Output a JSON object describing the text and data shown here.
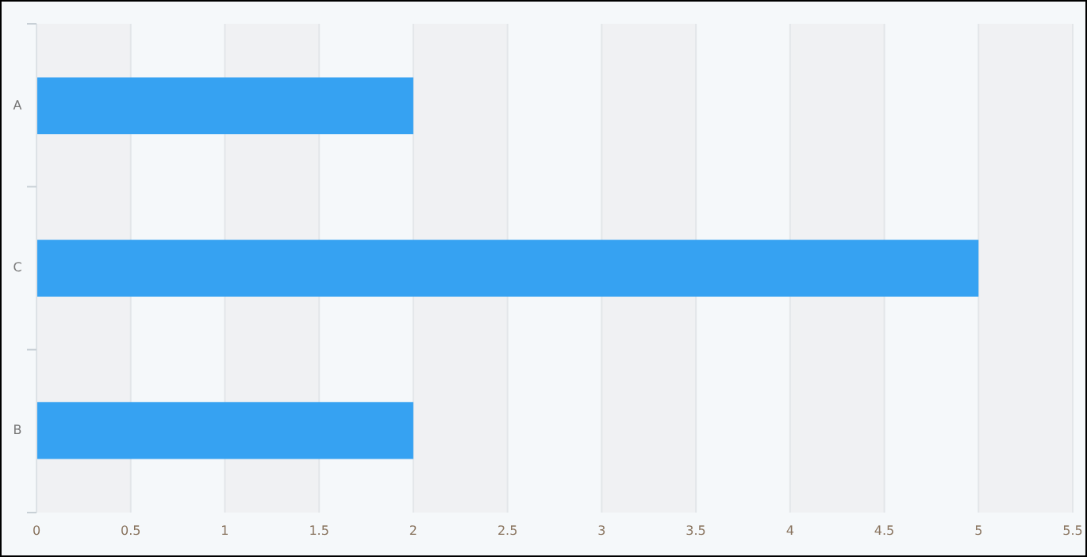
{
  "chart_data": {
    "type": "bar",
    "orientation": "horizontal",
    "categories": [
      "A",
      "C",
      "B"
    ],
    "series": [
      {
        "color": "#36a2f2",
        "values": [
          2,
          5,
          2
        ]
      }
    ],
    "xlim": [
      0,
      5.5
    ],
    "xticks": [
      0,
      0.5,
      1,
      1.5,
      2,
      2.5,
      3,
      3.5,
      4,
      4.5,
      5,
      5.5
    ],
    "grid": "x"
  }
}
